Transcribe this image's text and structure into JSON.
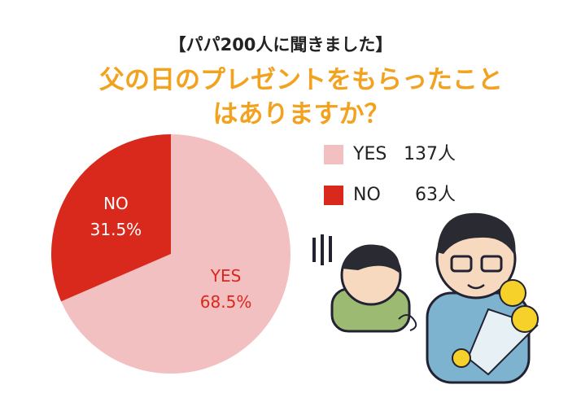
{
  "chart_data": {
    "type": "pie",
    "subtitle": "【パパ200人に聞きました】",
    "title": [
      "父の日のプレゼントをもらったこと",
      "はありますか？"
    ],
    "categories": [
      "YES",
      "NO"
    ],
    "values": [
      68.5,
      31.5
    ],
    "value_labels": [
      "68.5%",
      "31.5%"
    ],
    "counts": [
      137,
      63
    ],
    "count_labels": [
      "137人",
      "63人"
    ],
    "colors": [
      "#f3c0c1",
      "#d9281c"
    ],
    "label_colors": [
      "#d9281c",
      "#ffffff"
    ]
  }
}
